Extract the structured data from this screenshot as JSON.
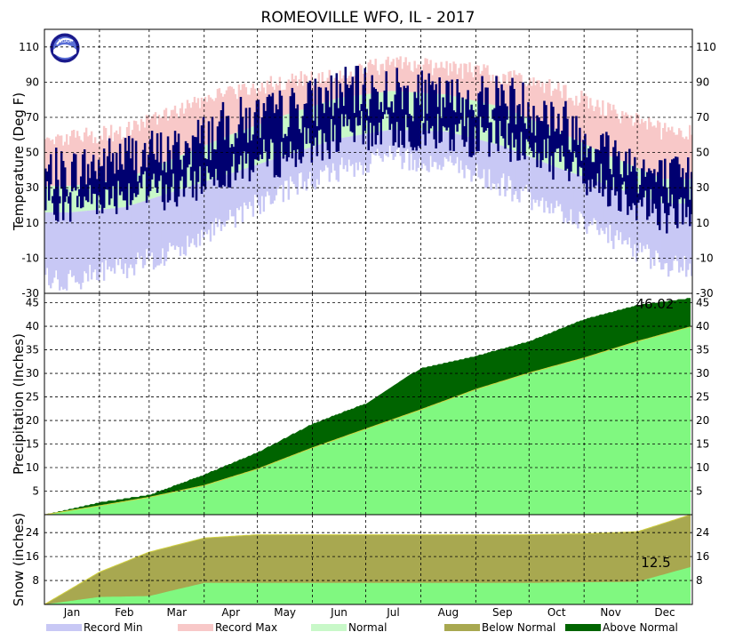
{
  "title": "ROMEOVILLE  WFO, IL - 2017",
  "colors": {
    "record_min": "#c8c8f5",
    "record_max": "#f8c8c8",
    "normal_band": "#c8f8c8",
    "observed": "#000070",
    "precip_normal": "#80f880",
    "precip_above": "#006400",
    "snow_below": "#a8a850",
    "snow_normal": "#80f880",
    "grid": "#000000"
  },
  "months": [
    "Jan",
    "Feb",
    "Mar",
    "Apr",
    "May",
    "Jun",
    "Jul",
    "Aug",
    "Sep",
    "Oct",
    "Nov",
    "Dec"
  ],
  "legend": [
    {
      "label": "Record Min",
      "color": "#c8c8f5"
    },
    {
      "label": "Record Max",
      "color": "#f8c8c8"
    },
    {
      "label": "Normal",
      "color": "#c8f8c8"
    },
    {
      "label": "Below Normal",
      "color": "#a8a850"
    },
    {
      "label": "Above Normal",
      "color": "#006400"
    }
  ],
  "chart_data": [
    {
      "type": "area",
      "panel": "temperature",
      "ylabel": "Temperature (Deg F)",
      "ylim": [
        -30,
        120
      ],
      "yticks": [
        -30,
        -10,
        10,
        30,
        50,
        70,
        90,
        110
      ],
      "x": [
        "Jan 15",
        "Feb 15",
        "Mar 15",
        "Apr 15",
        "May 15",
        "Jun 15",
        "Jul 15",
        "Aug 15",
        "Sep 15",
        "Oct 15",
        "Nov 15",
        "Dec 15"
      ],
      "series": [
        {
          "name": "Record Max",
          "values": [
            58,
            62,
            74,
            84,
            90,
            95,
            100,
            98,
            94,
            86,
            74,
            62
          ]
        },
        {
          "name": "Record Min",
          "values": [
            -22,
            -16,
            -6,
            12,
            28,
            40,
            48,
            44,
            32,
            18,
            2,
            -14
          ]
        },
        {
          "name": "Normal High",
          "values": [
            31,
            35,
            47,
            60,
            71,
            81,
            85,
            83,
            76,
            63,
            48,
            35
          ]
        },
        {
          "name": "Normal Low",
          "values": [
            16,
            19,
            28,
            38,
            48,
            58,
            63,
            62,
            54,
            42,
            31,
            21
          ]
        },
        {
          "name": "Observed High",
          "values": [
            38,
            48,
            50,
            66,
            72,
            84,
            85,
            79,
            82,
            70,
            50,
            34
          ]
        },
        {
          "name": "Observed Low",
          "values": [
            22,
            28,
            28,
            42,
            48,
            60,
            64,
            60,
            58,
            46,
            30,
            16
          ]
        }
      ],
      "grid": true
    },
    {
      "type": "area",
      "panel": "precipitation",
      "ylabel": "Precipitation (Inches)",
      "ylim": [
        0,
        47
      ],
      "yticks": [
        5,
        10,
        15,
        20,
        25,
        30,
        35,
        40,
        45
      ],
      "x": [
        "Jan 1",
        "Feb 1",
        "Mar 1",
        "Apr 1",
        "May 1",
        "Jun 1",
        "Jul 1",
        "Aug 1",
        "Sep 1",
        "Oct 1",
        "Nov 1",
        "Dec 1",
        "Dec 31"
      ],
      "series": [
        {
          "name": "Observed",
          "values": [
            0,
            2.6,
            4.2,
            8.5,
            13.2,
            19.3,
            23.6,
            31.1,
            33.7,
            36.8,
            41.5,
            44.5,
            46.02
          ]
        },
        {
          "name": "Normal",
          "values": [
            0,
            1.9,
            3.7,
            6.2,
            9.7,
            14.2,
            18.2,
            22.3,
            26.6,
            30.1,
            33.3,
            36.8,
            39.9
          ]
        }
      ],
      "annotation": "46.02",
      "grid": true
    },
    {
      "type": "area",
      "panel": "snow",
      "ylabel": "Snow (inches)",
      "ylim": [
        0,
        30
      ],
      "yticks": [
        8,
        16,
        24
      ],
      "x": [
        "Jan 1",
        "Feb 1",
        "Mar 1",
        "Apr 1",
        "May 1",
        "Jun 1",
        "Jul 1",
        "Aug 1",
        "Sep 1",
        "Oct 1",
        "Nov 1",
        "Dec 1",
        "Dec 31"
      ],
      "series": [
        {
          "name": "Observed",
          "values": [
            0,
            2.5,
            2.8,
            7.2,
            7.2,
            7.2,
            7.2,
            7.2,
            7.2,
            7.2,
            7.4,
            7.6,
            12.5
          ]
        },
        {
          "name": "Normal",
          "values": [
            0,
            10.8,
            17.5,
            22.2,
            23.3,
            23.3,
            23.3,
            23.3,
            23.3,
            23.3,
            23.6,
            24.3,
            30
          ]
        }
      ],
      "annotation": "12.5",
      "grid": true
    }
  ]
}
